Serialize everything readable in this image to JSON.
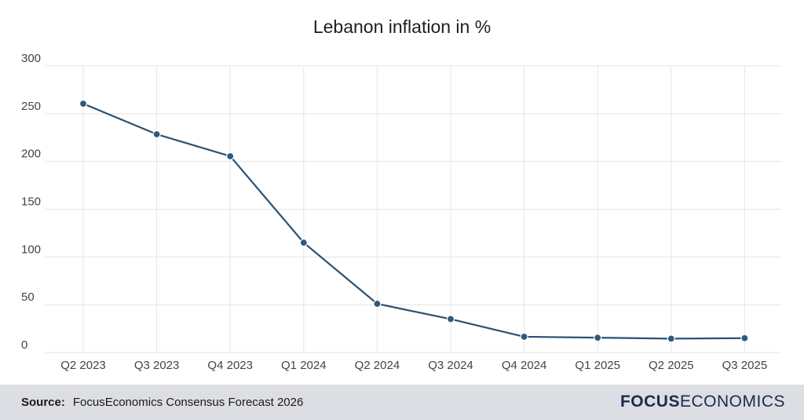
{
  "chart_data": {
    "type": "line",
    "title": "Lebanon inflation in %",
    "categories": [
      "Q2 2023",
      "Q3 2023",
      "Q4 2023",
      "Q1 2024",
      "Q2 2024",
      "Q3 2024",
      "Q4 2024",
      "Q1 2025",
      "Q2 2025",
      "Q3 2025"
    ],
    "series": [
      {
        "values": [
          260.5,
          228.5,
          205.5,
          115.0,
          51.0,
          35.0,
          16.5,
          15.5,
          14.5,
          15.0
        ]
      }
    ],
    "ylim": [
      0,
      300
    ],
    "yticks": [
      0,
      50,
      100,
      150,
      200,
      250,
      300
    ],
    "grid": true,
    "line_color": "#2a5173"
  },
  "footer": {
    "source_label": "Source:",
    "source_text": "FocusEconomics Consensus Forecast 2026",
    "logo_bold": "FOCUS",
    "logo_light": "ECONOMICS"
  }
}
